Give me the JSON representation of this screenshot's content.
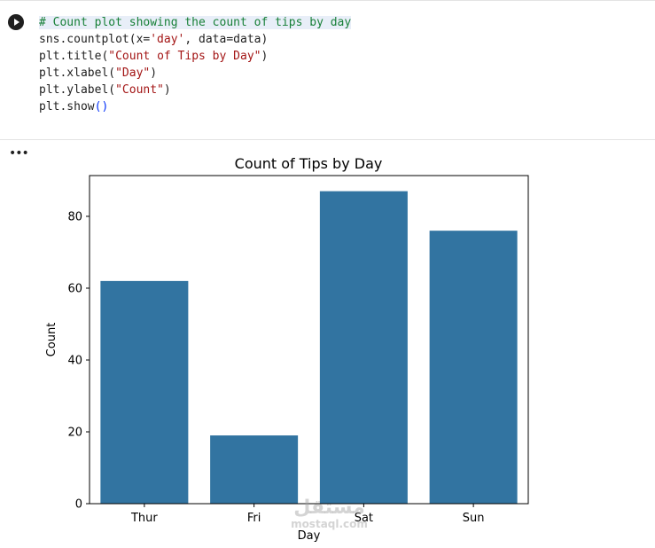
{
  "code_cell": {
    "run_icon": "play-icon",
    "lines": [
      {
        "segments": [
          {
            "text": "# Count plot showing the count of tips by day",
            "cls": "cmt"
          }
        ]
      },
      {
        "segments": [
          {
            "text": "sns.countplot(x=",
            "cls": ""
          },
          {
            "text": "'day'",
            "cls": "str"
          },
          {
            "text": ", data=data)",
            "cls": ""
          }
        ]
      },
      {
        "segments": [
          {
            "text": "plt.title(",
            "cls": ""
          },
          {
            "text": "\"Count of Tips by Day\"",
            "cls": "str"
          },
          {
            "text": ")",
            "cls": ""
          }
        ]
      },
      {
        "segments": [
          {
            "text": "plt.xlabel(",
            "cls": ""
          },
          {
            "text": "\"Day\"",
            "cls": "str"
          },
          {
            "text": ")",
            "cls": ""
          }
        ]
      },
      {
        "segments": [
          {
            "text": "plt.ylabel(",
            "cls": ""
          },
          {
            "text": "\"Count\"",
            "cls": "str"
          },
          {
            "text": ")",
            "cls": ""
          }
        ]
      },
      {
        "segments": [
          {
            "text": "plt.show",
            "cls": ""
          },
          {
            "text": "()",
            "cls": "paren"
          }
        ]
      }
    ]
  },
  "output": {
    "menu_label": "•••"
  },
  "chart_data": {
    "type": "bar",
    "title": "Count of Tips by Day",
    "xlabel": "Day",
    "ylabel": "Count",
    "categories": [
      "Thur",
      "Fri",
      "Sat",
      "Sun"
    ],
    "values": [
      62,
      19,
      87,
      76
    ],
    "ylim": [
      0,
      91.35
    ],
    "yticks": [
      0,
      20,
      40,
      60,
      80
    ],
    "bar_color": "#3274a1",
    "grid": false
  },
  "watermark": {
    "logo_text": "مستقل",
    "url": "mostaql.com"
  }
}
